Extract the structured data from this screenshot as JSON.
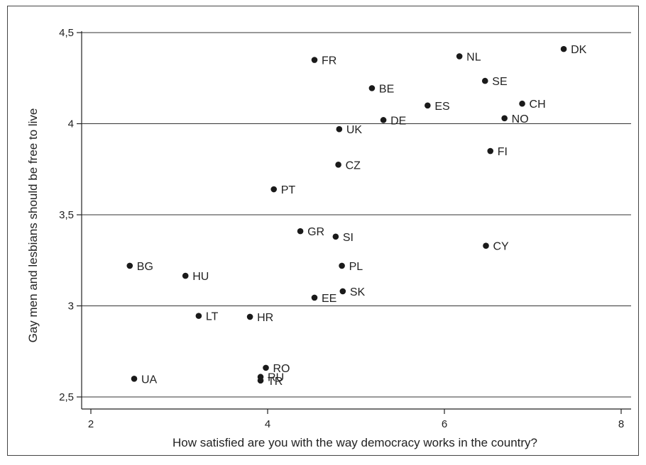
{
  "chart_data": {
    "type": "scatter",
    "title": "",
    "xlabel": "How satisfied are you with the way democracy works in the country?",
    "ylabel": "Gay men and lesbians should be free to live",
    "xlim": [
      2,
      8
    ],
    "ylim": [
      2.5,
      4.5
    ],
    "x_ticks": [
      {
        "value": 2,
        "label": "2"
      },
      {
        "value": 4,
        "label": "4"
      },
      {
        "value": 6,
        "label": "6"
      },
      {
        "value": 8,
        "label": "8"
      }
    ],
    "y_ticks": [
      {
        "value": 2.5,
        "label": "2,5"
      },
      {
        "value": 3,
        "label": "3"
      },
      {
        "value": 3.5,
        "label": "3,5"
      },
      {
        "value": 4,
        "label": "4"
      },
      {
        "value": 4.5,
        "label": "4,5"
      }
    ],
    "grid": {
      "horizontal": true,
      "vertical": false
    },
    "marker_color": "#1a1a1a",
    "grid_color": "#333333",
    "points": [
      {
        "label": "DK",
        "x": 7.35,
        "y": 4.41
      },
      {
        "label": "NL",
        "x": 6.17,
        "y": 4.37
      },
      {
        "label": "FR",
        "x": 4.53,
        "y": 4.35
      },
      {
        "label": "SE",
        "x": 6.46,
        "y": 4.235
      },
      {
        "label": "BE",
        "x": 5.18,
        "y": 4.195
      },
      {
        "label": "CH",
        "x": 6.88,
        "y": 4.11
      },
      {
        "label": "ES",
        "x": 5.81,
        "y": 4.1
      },
      {
        "label": "NO",
        "x": 6.68,
        "y": 4.03
      },
      {
        "label": "DE",
        "x": 5.31,
        "y": 4.02
      },
      {
        "label": "UK",
        "x": 4.81,
        "y": 3.97
      },
      {
        "label": "FI",
        "x": 6.52,
        "y": 3.85
      },
      {
        "label": "CZ",
        "x": 4.8,
        "y": 3.775
      },
      {
        "label": "PT",
        "x": 4.07,
        "y": 3.64
      },
      {
        "label": "GR",
        "x": 4.37,
        "y": 3.41
      },
      {
        "label": "SI",
        "x": 4.77,
        "y": 3.38
      },
      {
        "label": "CY",
        "x": 6.47,
        "y": 3.33
      },
      {
        "label": "BG",
        "x": 2.44,
        "y": 3.22
      },
      {
        "label": "PL",
        "x": 4.84,
        "y": 3.22
      },
      {
        "label": "HU",
        "x": 3.07,
        "y": 3.165
      },
      {
        "label": "SK",
        "x": 4.85,
        "y": 3.08
      },
      {
        "label": "EE",
        "x": 4.53,
        "y": 3.045
      },
      {
        "label": "LT",
        "x": 3.22,
        "y": 2.945
      },
      {
        "label": "HR",
        "x": 3.8,
        "y": 2.94
      },
      {
        "label": "RO",
        "x": 3.98,
        "y": 2.66
      },
      {
        "label": "RU",
        "x": 3.92,
        "y": 2.61
      },
      {
        "label": "UA",
        "x": 2.49,
        "y": 2.6
      },
      {
        "label": "TR",
        "x": 3.92,
        "y": 2.59
      }
    ]
  }
}
